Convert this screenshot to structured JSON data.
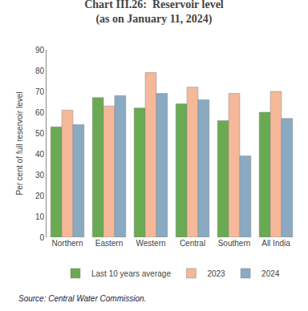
{
  "chart_data": {
    "type": "bar",
    "title": "Chart III.26:  Reservoir level\n(as on January 11, 2024)",
    "categories": [
      "Northern",
      "Eastern",
      "Western",
      "Central",
      "Southern",
      "All India"
    ],
    "series": [
      {
        "name": "Last 10 years average",
        "color": "#6aaa52",
        "values": [
          53,
          67,
          62,
          64,
          56,
          60
        ]
      },
      {
        "name": "2023",
        "color": "#f5b899",
        "values": [
          61,
          63,
          79,
          72,
          69,
          70
        ]
      },
      {
        "name": "2024",
        "color": "#8aaac2",
        "values": [
          54,
          68,
          69,
          66,
          39,
          57
        ]
      }
    ],
    "ylabel": "Per cent of full reservoir level",
    "ylim": [
      0,
      90
    ],
    "yticks": [
      0,
      10,
      20,
      30,
      40,
      50,
      60,
      70,
      80,
      90
    ],
    "annotations": [
      "Source: Central Water Commission."
    ],
    "legend": "bottom",
    "grid": false
  }
}
